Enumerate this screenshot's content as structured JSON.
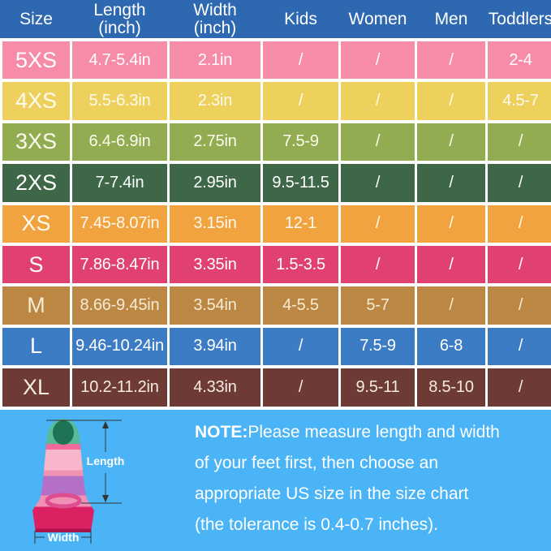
{
  "chart_data": {
    "type": "table",
    "header_bg": "#2E68B1",
    "header_text_color": "#FFFFFF",
    "columns": [
      {
        "label": "Size",
        "sub": ""
      },
      {
        "label": "Length",
        "sub": "(inch)"
      },
      {
        "label": "Width",
        "sub": "(inch)"
      },
      {
        "label": "Kids",
        "sub": ""
      },
      {
        "label": "Women",
        "sub": ""
      },
      {
        "label": "Men",
        "sub": ""
      },
      {
        "label": "Toddlers",
        "sub": ""
      }
    ],
    "rows": [
      [
        "5XS",
        "4.7-5.4in",
        "2.1in",
        "/",
        "/",
        "/",
        "2-4"
      ],
      [
        "4XS",
        "5.5-6.3in",
        "2.3in",
        "/",
        "/",
        "/",
        "4.5-7"
      ],
      [
        "3XS",
        "6.4-6.9in",
        "2.75in",
        "7.5-9",
        "/",
        "/",
        "/"
      ],
      [
        "2XS",
        "7-7.4in",
        "2.95in",
        "9.5-11.5",
        "/",
        "/",
        "/"
      ],
      [
        "XS",
        "7.45-8.07in",
        "3.15in",
        "12-1",
        "/",
        "/",
        "/"
      ],
      [
        "S",
        "7.86-8.47in",
        "3.35in",
        "1.5-3.5",
        "/",
        "/",
        "/"
      ],
      [
        "M",
        "8.66-9.45in",
        "3.54in",
        "4-5.5",
        "5-7",
        "/",
        "/"
      ],
      [
        "L",
        "9.46-10.24in",
        "3.94in",
        "/",
        "7.5-9",
        "6-8",
        "/"
      ],
      [
        "XL",
        "10.2-11.2in",
        "4.33in",
        "/",
        "9.5-11",
        "8.5-10",
        "/"
      ]
    ],
    "row_colors": [
      "#F78CA9",
      "#EDD15C",
      "#92AD51",
      "#3E6747",
      "#F1A33F",
      "#E04170",
      "#BC8743",
      "#3B7CC5",
      "#6E3A35"
    ],
    "row_text_colors": [
      "#FFFFFF",
      "#FDFAEF",
      "#FDFAEF",
      "#FFFFFF",
      "#FDFAEF",
      "#FFFFFF",
      "#F5EBD3",
      "#FFFFFF",
      "#F5EBE0"
    ]
  },
  "footer": {
    "bg": "#4AB4F7",
    "note": {
      "label": "NOTE:",
      "lines": [
        "Please measure length and width",
        "of your feet first, then choose an",
        "appropriate US size in the size chart",
        "(the tolerance is 0.4-0.7 inches)."
      ]
    },
    "fin": {
      "length_label": "Length",
      "width_label": "Width"
    }
  }
}
